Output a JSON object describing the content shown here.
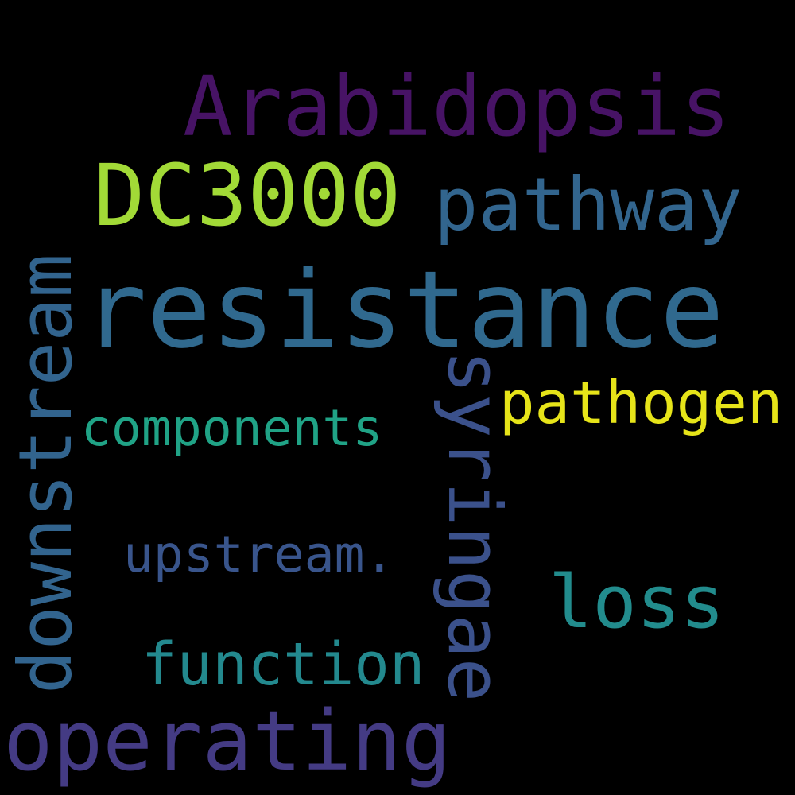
{
  "background_color": "#000000",
  "words": [
    {
      "text": "resistance",
      "color": "#30698e"
    },
    {
      "text": "Arabidopsis",
      "color": "#471365"
    },
    {
      "text": "DC3000",
      "color": "#a2da37"
    },
    {
      "text": "pathway",
      "color": "#32658e"
    },
    {
      "text": "downstream",
      "color": "#32648e"
    },
    {
      "text": "syringae",
      "color": "#3b518b"
    },
    {
      "text": "pathogen",
      "color": "#e6e419"
    },
    {
      "text": "components",
      "color": "#20a386"
    },
    {
      "text": "upstream.",
      "color": "#39558c"
    },
    {
      "text": "loss",
      "color": "#228c8d"
    },
    {
      "text": "function",
      "color": "#23898e"
    },
    {
      "text": "operating",
      "color": "#443b84"
    }
  ]
}
